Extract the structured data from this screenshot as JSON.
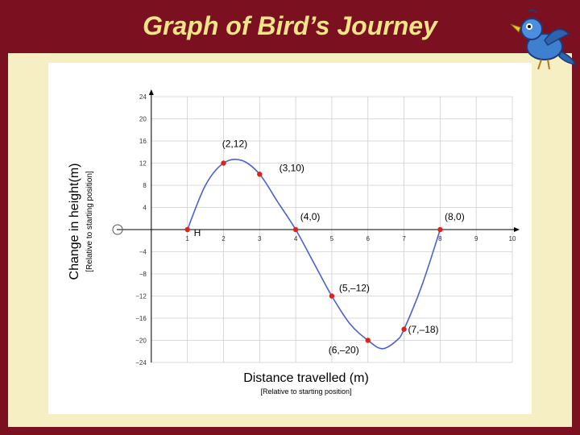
{
  "title": "Graph of Bird’s Journey",
  "chart_data": {
    "type": "line",
    "title": "Graph of Bird’s Journey",
    "xlabel": "Distance travelled (m)",
    "xlabel_note": "[Relative to starting position]",
    "ylabel": "Change in height(m)",
    "ylabel_note": "[Relative to starting position]",
    "xlim": [
      -1,
      10
    ],
    "ylim": [
      -24,
      24
    ],
    "x_ticks": [
      1,
      2,
      3,
      4,
      5,
      6,
      7,
      8,
      9,
      10
    ],
    "y_ticks": [
      24,
      20,
      16,
      12,
      8,
      4,
      -4,
      -8,
      -12,
      -16,
      -20,
      -24
    ],
    "grid": true,
    "series": [
      {
        "color": "#4a5fd6",
        "x": [
          1,
          1.5,
          2,
          2.5,
          3,
          3.5,
          4,
          4.5,
          5,
          5.5,
          6,
          6.4,
          6.8,
          7,
          7.5,
          8
        ],
        "y": [
          0,
          8,
          12,
          12.5,
          10,
          5,
          0,
          -6,
          -12,
          -17,
          -20,
          -21.5,
          -20,
          -18,
          -10,
          0
        ]
      }
    ],
    "points": [
      {
        "x": 1,
        "y": 0,
        "label": "H"
      },
      {
        "x": 2,
        "y": 12,
        "label": "(2,12)"
      },
      {
        "x": 3,
        "y": 10,
        "label": "(3,10)"
      },
      {
        "x": 4,
        "y": 0,
        "label": "(4,0)"
      },
      {
        "x": 8,
        "y": 0,
        "label": "(8,0)"
      },
      {
        "x": 5,
        "y": -12,
        "label": "(5,–12)"
      },
      {
        "x": 7,
        "y": -18,
        "label": "(7,–18)"
      },
      {
        "x": 6,
        "y": -20,
        "label": "(6,–20)"
      }
    ],
    "origin_marker": true,
    "point_color": "#e0231a"
  }
}
